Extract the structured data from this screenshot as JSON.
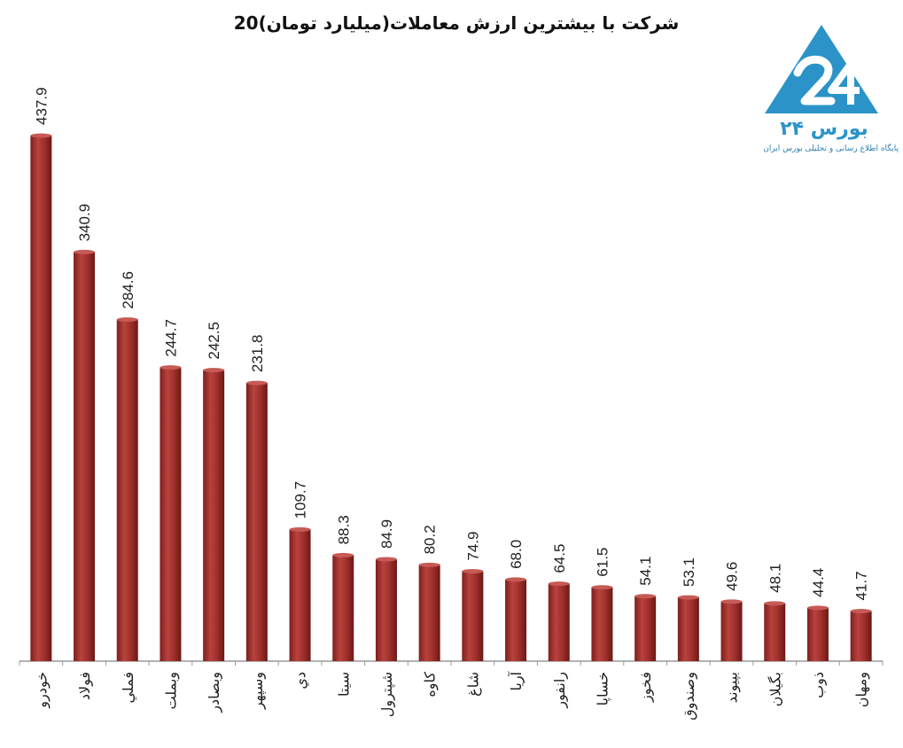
{
  "chart_data": {
    "type": "bar",
    "title": "20شرکت با بیشترین ارزش معاملات(میلیارد تومان)",
    "categories": [
      "خودرو",
      "فولاد",
      "فملي",
      "وبملت",
      "وبصادر",
      "وسپهر",
      "دي",
      "سيتا",
      "شپترول",
      "كاوه",
      "شاغ",
      "آريا",
      "رانفور",
      "خساپا",
      "فخوز",
      "وصندوق",
      "بپيوند",
      "بگيلان",
      "ذوب",
      "ومهان"
    ],
    "value_labels": [
      "437.9",
      "340.9",
      "284.6",
      "244.7",
      "242.5",
      "231.8",
      "109.7",
      "88.3",
      "84.9",
      "80.2",
      "74.9",
      "68.0",
      "64.5",
      "61.5",
      "54.1",
      "53.1",
      "49.6",
      "48.1",
      "44.4",
      "41.7"
    ],
    "values": [
      437.9,
      340.9,
      284.6,
      244.7,
      242.5,
      231.8,
      109.7,
      88.3,
      84.9,
      80.2,
      74.9,
      68.0,
      64.5,
      61.5,
      54.1,
      53.1,
      49.6,
      48.1,
      44.4,
      41.7
    ],
    "ylim": [
      0,
      437.9
    ],
    "bar_color": "#9b2d2a",
    "bar_highlight": "#c65a55",
    "grid": false
  },
  "logo": {
    "brand_text": "بورس ۲۴",
    "tagline": "پایگاه اطلاع رسانی و تحلیلی بورس ایران",
    "color": "#2b93c8"
  }
}
